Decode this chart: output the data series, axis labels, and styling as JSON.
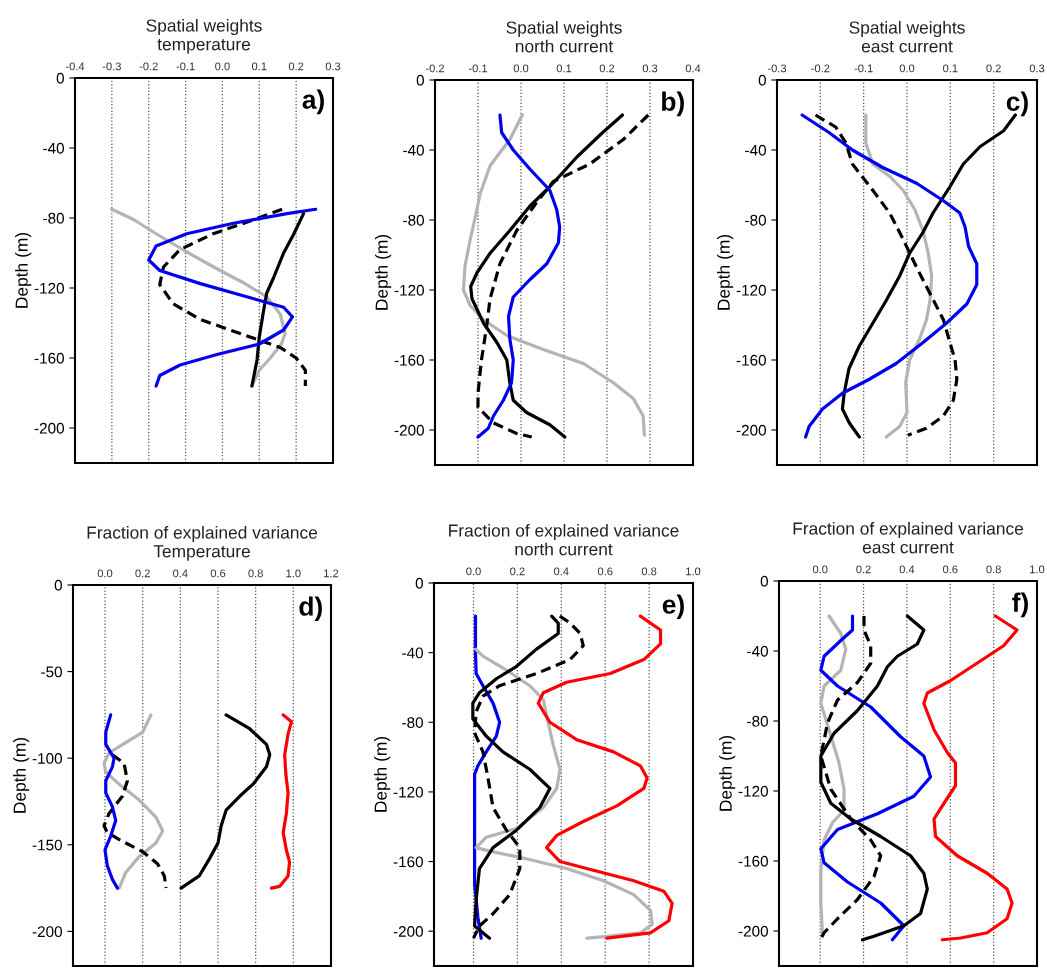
{
  "chart_data": [
    {
      "type": "line",
      "title": "Spatial weights\ntemperature",
      "ylabel": "Depth (m)",
      "annotations": [
        "a)"
      ],
      "xlim": [
        -0.4,
        0.3
      ],
      "xticks": [
        {
          "value": -0.4,
          "label": "-0.4"
        },
        {
          "value": -0.3,
          "label": "-0.3"
        },
        {
          "value": -0.2,
          "label": "-0.2"
        },
        {
          "value": -0.1,
          "label": "-0.1"
        },
        {
          "value": 0.0,
          "label": "0.0"
        },
        {
          "value": 0.1,
          "label": "0.1"
        },
        {
          "value": 0.2,
          "label": "0.2"
        },
        {
          "value": 0.3,
          "label": "0.3"
        }
      ],
      "ylim": [
        -220,
        0
      ],
      "yticks": [
        0,
        -40,
        -80,
        -120,
        -160,
        -200
      ],
      "grid": "x",
      "series": [
        {
          "color": "#b4b4b4",
          "line_style": "solid",
          "x": [
            -0.3,
            -0.24,
            -0.18,
            -0.1,
            -0.015,
            0.057,
            0.12,
            0.157,
            0.17,
            0.16,
            0.13,
            0.1,
            0.08
          ],
          "values": [
            -75,
            -81,
            -89,
            -99,
            -109,
            -117,
            -125,
            -135,
            -146,
            -152,
            -160,
            -167,
            -176
          ]
        },
        {
          "color": "#000000",
          "line_style": "solid",
          "x": [
            0.22,
            0.194,
            0.166,
            0.139,
            0.12,
            0.11,
            0.1,
            0.094,
            0.08
          ],
          "values": [
            -77.5,
            -89,
            -100,
            -114,
            -123,
            -135,
            -148,
            -161,
            -176
          ]
        },
        {
          "color": "#000000",
          "line_style": "dashed",
          "x": [
            0.162,
            0.085,
            -0.025,
            -0.115,
            -0.16,
            -0.17,
            -0.134,
            -0.06,
            0.048,
            0.157,
            0.2,
            0.225,
            0.225
          ],
          "values": [
            -75,
            -81,
            -89,
            -98,
            -108,
            -118,
            -129,
            -138,
            -146,
            -154,
            -160,
            -167,
            -176
          ]
        },
        {
          "color": "#0000ee",
          "line_style": "solid",
          "x": [
            0.253,
            0.175,
            0.03,
            -0.097,
            -0.18,
            -0.2,
            -0.17,
            -0.06,
            0.066,
            0.166,
            0.19,
            0.166,
            0.1,
            -0.015,
            -0.115,
            -0.17,
            -0.18
          ],
          "values": [
            -75,
            -77.5,
            -83,
            -89,
            -96,
            -104,
            -110,
            -117.5,
            -125,
            -131,
            -136.5,
            -144,
            -152,
            -158,
            -164,
            -170,
            -176
          ]
        }
      ]
    },
    {
      "type": "line",
      "title": "Spatial weights\nnorth current",
      "ylabel": "Depth (m)",
      "annotations": [
        "b)"
      ],
      "xlim": [
        -0.2,
        0.4
      ],
      "xticks": [
        {
          "value": -0.2,
          "label": "-0.2"
        },
        {
          "value": -0.1,
          "label": "-0.1"
        },
        {
          "value": 0.0,
          "label": "0.0"
        },
        {
          "value": 0.1,
          "label": "0.1"
        },
        {
          "value": 0.2,
          "label": "0.2"
        },
        {
          "value": 0.3,
          "label": "0.3"
        },
        {
          "value": 0.4,
          "label": "0.4"
        }
      ],
      "ylim": [
        -220,
        0
      ],
      "yticks": [
        0,
        -40,
        -80,
        -120,
        -160,
        -200
      ],
      "grid": "x",
      "series": [
        {
          "color": "#b4b4b4",
          "line_style": "solid",
          "x": [
            0.003,
            -0.026,
            -0.072,
            -0.095,
            -0.106,
            -0.118,
            -0.13,
            -0.134,
            -0.118,
            -0.087,
            -0.033,
            0.052,
            0.145,
            0.215,
            0.261,
            0.284,
            0.287
          ],
          "values": [
            -20,
            -34,
            -49,
            -65,
            -78,
            -91,
            -106,
            -120,
            -129,
            -137,
            -146,
            -154,
            -162,
            -173,
            -182,
            -192,
            -203
          ]
        },
        {
          "color": "#000000",
          "line_style": "solid",
          "x": [
            0.236,
            0.19,
            0.13,
            0.067,
            0.021,
            -0.026,
            -0.072,
            -0.102,
            -0.117,
            -0.114,
            -0.087,
            -0.056,
            -0.033,
            -0.026,
            -0.018,
            0.013,
            0.067,
            0.102
          ],
          "values": [
            -20,
            -30,
            -44,
            -61,
            -72,
            -86,
            -99,
            -110,
            -118,
            -125,
            -139,
            -150,
            -160,
            -173,
            -183,
            -190,
            -197,
            -204
          ]
        },
        {
          "color": "#000000",
          "line_style": "dashed",
          "x": [
            0.296,
            0.238,
            0.16,
            0.075,
            0.036,
            -0.01,
            -0.049,
            -0.072,
            -0.08,
            -0.092,
            -0.1,
            -0.1,
            -0.064,
            -0.01,
            0.025
          ],
          "values": [
            -20,
            -34,
            -48,
            -58,
            -70,
            -86,
            -105,
            -125,
            -141,
            -160,
            -179,
            -187,
            -196,
            -202,
            -204
          ]
        },
        {
          "color": "#0000ee",
          "line_style": "solid",
          "x": [
            -0.049,
            -0.045,
            -0.018,
            0.021,
            0.067,
            0.083,
            0.09,
            0.087,
            0.06,
            0.021,
            -0.018,
            -0.029,
            -0.026,
            -0.018,
            -0.022,
            -0.041,
            -0.064,
            -0.076,
            -0.1
          ],
          "values": [
            -20,
            -30,
            -40,
            -51,
            -63,
            -74,
            -84,
            -93,
            -105,
            -114,
            -124,
            -135,
            -148,
            -160,
            -173,
            -183,
            -192,
            -199,
            -204
          ]
        }
      ]
    },
    {
      "type": "line",
      "title": "Spatial weights\neast current",
      "ylabel": "Depth (m)",
      "annotations": [
        "c)"
      ],
      "xlim": [
        -0.3,
        0.3
      ],
      "xticks": [
        {
          "value": -0.3,
          "label": "-0.3"
        },
        {
          "value": -0.2,
          "label": "-0.2"
        },
        {
          "value": -0.1,
          "label": "-0.1"
        },
        {
          "value": 0.0,
          "label": "0.0"
        },
        {
          "value": 0.1,
          "label": "0.1"
        },
        {
          "value": 0.2,
          "label": "0.2"
        },
        {
          "value": 0.3,
          "label": "0.3"
        }
      ],
      "ylim": [
        -220,
        0
      ],
      "yticks": [
        0,
        -40,
        -80,
        -120,
        -160,
        -200
      ],
      "grid": "x",
      "series": [
        {
          "color": "#b4b4b4",
          "line_style": "solid",
          "x": [
            -0.095,
            -0.095,
            -0.079,
            -0.04,
            -0.009,
            0.018,
            0.037,
            0.049,
            0.057,
            0.053,
            0.045,
            0.029,
            0.006,
            -0.003,
            0.0,
            -0.017,
            -0.048
          ],
          "values": [
            -20,
            -36,
            -48,
            -55,
            -63,
            -74,
            -86,
            -99,
            -112,
            -126,
            -137,
            -148,
            -160,
            -173,
            -190,
            -198,
            -204
          ]
        },
        {
          "color": "#000000",
          "line_style": "solid",
          "x": [
            0.25,
            0.223,
            0.169,
            0.13,
            0.099,
            0.06,
            0.037,
            0.006,
            -0.017,
            -0.048,
            -0.079,
            -0.11,
            -0.134,
            -0.145,
            -0.149,
            -0.133,
            -0.11
          ],
          "values": [
            -20,
            -29,
            -38,
            -48,
            -61,
            -76,
            -87,
            -99,
            -112,
            -126,
            -139,
            -152,
            -165,
            -179,
            -188,
            -196,
            -204
          ]
        },
        {
          "color": "#000000",
          "line_style": "dashed",
          "x": [
            -0.211,
            -0.164,
            -0.141,
            -0.126,
            -0.079,
            -0.04,
            -0.009,
            0.022,
            0.053,
            0.084,
            0.099,
            0.111,
            0.115,
            0.107,
            0.084,
            0.045,
            0.002
          ],
          "values": [
            -20,
            -27,
            -36,
            -48,
            -63,
            -76,
            -91,
            -107,
            -122,
            -137,
            -150,
            -160,
            -171,
            -183,
            -192,
            -199,
            -203
          ]
        },
        {
          "color": "#0000ee",
          "line_style": "solid",
          "x": [
            -0.242,
            -0.18,
            -0.126,
            -0.056,
            0.022,
            0.084,
            0.122,
            0.134,
            0.142,
            0.161,
            0.161,
            0.138,
            0.091,
            0.037,
            -0.025,
            -0.087,
            -0.149,
            -0.195,
            -0.226,
            -0.234
          ],
          "values": [
            -20,
            -30,
            -40,
            -50,
            -59,
            -69,
            -76,
            -84,
            -95,
            -105,
            -117,
            -128,
            -139,
            -150,
            -162,
            -171,
            -179,
            -188,
            -198,
            -204
          ]
        }
      ]
    },
    {
      "type": "line",
      "title": "Fraction of explained variance\nTemperature",
      "ylabel": "Depth (m)",
      "annotations": [
        "d)"
      ],
      "xlim": [
        -0.17,
        1.2
      ],
      "xticks": [
        {
          "value": 0.0,
          "label": "0.0"
        },
        {
          "value": 0.2,
          "label": "0.2"
        },
        {
          "value": 0.4,
          "label": "0.4"
        },
        {
          "value": 0.6,
          "label": "0.6"
        },
        {
          "value": 0.8,
          "label": "0.8"
        },
        {
          "value": 1.0,
          "label": "1.0"
        },
        {
          "value": 1.2,
          "label": "1.2"
        }
      ],
      "ylim": [
        -220,
        0
      ],
      "yticks": [
        0,
        -50,
        -100,
        -150,
        -200
      ],
      "grid": "x",
      "series": [
        {
          "color": "#b4b4b4",
          "line_style": "solid",
          "x": [
            0.244,
            0.2,
            0.11,
            0.021,
            -0.005,
            0.004,
            0.075,
            0.18,
            0.27,
            0.306,
            0.27,
            0.18,
            0.11,
            0.075
          ],
          "values": [
            -75,
            -85,
            -91,
            -97,
            -103,
            -108,
            -115,
            -124,
            -134,
            -142,
            -149,
            -157,
            -166,
            -175
          ]
        },
        {
          "color": "#000000",
          "line_style": "solid",
          "x": [
            0.643,
            0.768,
            0.857,
            0.875,
            0.857,
            0.786,
            0.715,
            0.643,
            0.617,
            0.6,
            0.555,
            0.5,
            0.404
          ],
          "values": [
            -75,
            -83,
            -92,
            -98,
            -105,
            -115,
            -122,
            -130,
            -139,
            -149,
            -158,
            -168,
            -175
          ]
        },
        {
          "color": "#000000",
          "line_style": "dashed",
          "x": [
            0.039,
            0.101,
            0.119,
            0.092,
            0.021,
            -0.005,
            0.012,
            0.092,
            0.2,
            0.279,
            0.315,
            0.324
          ],
          "values": [
            -98,
            -103,
            -113,
            -122,
            -132,
            -139,
            -143,
            -148,
            -154,
            -161,
            -168,
            -175
          ]
        },
        {
          "color": "#0000ee",
          "line_style": "solid",
          "x": [
            0.03,
            0.004,
            0.004,
            0.048,
            0.039,
            0.004,
            0.004,
            0.039,
            0.057,
            0.03,
            0.0,
            0.012,
            0.039,
            0.066
          ],
          "values": [
            -75,
            -85,
            -92,
            -100,
            -105,
            -113,
            -120,
            -128,
            -136,
            -145,
            -153,
            -162,
            -170,
            -175
          ]
        },
        {
          "color": "#ff0000",
          "line_style": "solid",
          "x": [
            0.946,
            0.99,
            0.972,
            0.954,
            0.96,
            0.972,
            0.963,
            0.946,
            0.963,
            0.98,
            0.972,
            0.928,
            0.884
          ],
          "values": [
            -75,
            -79,
            -86,
            -98,
            -109,
            -120,
            -132,
            -143,
            -153,
            -160,
            -168,
            -174,
            -175
          ]
        }
      ]
    },
    {
      "type": "line",
      "title": "Fraction of explained variance\nnorth current",
      "ylabel": "Depth (m)",
      "annotations": [
        "e)"
      ],
      "xlim": [
        -0.18,
        1.0
      ],
      "xticks": [
        {
          "value": 0.0,
          "label": "0.0"
        },
        {
          "value": 0.2,
          "label": "0.2"
        },
        {
          "value": 0.4,
          "label": "0.4"
        },
        {
          "value": 0.6,
          "label": "0.6"
        },
        {
          "value": 0.8,
          "label": "0.8"
        },
        {
          "value": 1.0,
          "label": "1.0"
        }
      ],
      "ylim": [
        -220,
        0
      ],
      "yticks": [
        0,
        -40,
        -80,
        -120,
        -160,
        -200
      ],
      "grid": "x",
      "series": [
        {
          "color": "#0000ee",
          "line_style": "solid",
          "x": [
            0.009,
            0.009,
            0.012,
            0.043,
            0.089,
            0.119,
            0.104,
            0.058,
            0.02,
            0.005,
            0.005,
            0.005,
            0.02,
            0.035
          ],
          "values": [
            -19,
            -40,
            -52,
            -59,
            -69,
            -80,
            -88,
            -97,
            -105,
            -110,
            -145,
            -173,
            -192,
            -204
          ]
        },
        {
          "color": "#b4b4b4",
          "line_style": "solid",
          "x": [
            0.009,
            0.043,
            0.15,
            0.256,
            0.318,
            0.34,
            0.363,
            0.394,
            0.379,
            0.318,
            0.196,
            0.058,
            0.012,
            0.073,
            0.226,
            0.424,
            0.592,
            0.73,
            0.806,
            0.814,
            0.76,
            0.608,
            0.516
          ],
          "values": [
            -38,
            -42,
            -50,
            -59,
            -67,
            -80,
            -93,
            -107,
            -118,
            -129,
            -141,
            -146,
            -152,
            -154,
            -158,
            -164,
            -171,
            -179,
            -188,
            -196,
            -201,
            -203,
            -204
          ]
        },
        {
          "color": "#000000",
          "line_style": "solid",
          "x": [
            0.356,
            0.386,
            0.386,
            0.287,
            0.195,
            0.104,
            0.027,
            -0.003,
            -0.003,
            0.058,
            0.134,
            0.256,
            0.348,
            0.302,
            0.196,
            0.089,
            0.027,
            0.012,
            0.005,
            0.073
          ],
          "values": [
            -19,
            -23,
            -29,
            -38,
            -48,
            -55,
            -63,
            -69,
            -78,
            -88,
            -97,
            -107,
            -118,
            -129,
            -142,
            -152,
            -164,
            -182,
            -197,
            -204
          ]
        },
        {
          "color": "#000000",
          "line_style": "dashed",
          "x": [
            0.393,
            0.44,
            0.486,
            0.5,
            0.44,
            0.287,
            0.119,
            0.043,
            0.012,
            0.005,
            0.043,
            0.066,
            0.089,
            0.15,
            0.211,
            0.211,
            0.165,
            0.089,
            0.027,
            0.0
          ],
          "values": [
            -19,
            -23,
            -29,
            -36,
            -44,
            -52,
            -59,
            -65,
            -74,
            -86,
            -97,
            -112,
            -129,
            -142,
            -152,
            -164,
            -179,
            -190,
            -197,
            -204
          ]
        },
        {
          "color": "#ff0000",
          "line_style": "solid",
          "x": [
            0.76,
            0.852,
            0.852,
            0.776,
            0.623,
            0.424,
            0.318,
            0.295,
            0.348,
            0.47,
            0.638,
            0.76,
            0.791,
            0.776,
            0.653,
            0.5,
            0.379,
            0.333,
            0.394,
            0.546,
            0.73,
            0.867,
            0.905,
            0.89,
            0.806,
            0.608
          ],
          "values": [
            -19,
            -27,
            -35,
            -44,
            -52,
            -57,
            -63,
            -69,
            -80,
            -90,
            -97,
            -105,
            -112,
            -118,
            -128,
            -137,
            -145,
            -152,
            -160,
            -165,
            -171,
            -177,
            -184,
            -194,
            -201,
            -204
          ]
        }
      ]
    },
    {
      "type": "line",
      "title": "Fraction of explained variance\neast current",
      "ylabel": "Depth (m)",
      "annotations": [
        "f)"
      ],
      "xlim": [
        -0.19,
        1.0
      ],
      "xticks": [
        {
          "value": 0.0,
          "label": "0.0"
        },
        {
          "value": 0.2,
          "label": "0.2"
        },
        {
          "value": 0.4,
          "label": "0.4"
        },
        {
          "value": 0.6,
          "label": "0.6"
        },
        {
          "value": 0.8,
          "label": "0.8"
        },
        {
          "value": 1.0,
          "label": "1.0"
        }
      ],
      "ylim": [
        -220,
        0
      ],
      "yticks": [
        0,
        -40,
        -80,
        -120,
        -160,
        -200
      ],
      "grid": "x",
      "series": [
        {
          "color": "#b4b4b4",
          "line_style": "solid",
          "x": [
            0.041,
            0.095,
            0.118,
            0.095,
            0.018,
            0.003,
            0.041,
            0.087,
            0.11,
            0.11,
            0.057,
            0.018,
            0.003,
            0.003,
            0.011
          ],
          "values": [
            -20,
            -30,
            -39,
            -51,
            -60,
            -70,
            -85,
            -104,
            -119,
            -131,
            -138,
            -148,
            -165,
            -184,
            -203
          ]
        },
        {
          "color": "#0000ee",
          "line_style": "solid",
          "x": [
            0.149,
            0.149,
            0.095,
            0.018,
            0.003,
            0.08,
            0.233,
            0.371,
            0.478,
            0.509,
            0.432,
            0.264,
            0.08,
            0.003,
            0.018,
            0.126,
            0.279,
            0.386,
            0.333
          ],
          "values": [
            -20,
            -28,
            -34,
            -43,
            -51,
            -60,
            -72,
            -89,
            -100,
            -112,
            -123,
            -133,
            -142,
            -153,
            -161,
            -172,
            -184,
            -197,
            -205
          ]
        },
        {
          "color": "#000000",
          "line_style": "solid",
          "x": [
            0.402,
            0.478,
            0.448,
            0.356,
            0.31,
            0.264,
            0.172,
            0.064,
            0.003,
            0.003,
            0.049,
            0.141,
            0.279,
            0.417,
            0.478,
            0.494,
            0.463,
            0.386,
            0.248,
            0.195
          ],
          "values": [
            -20,
            -28,
            -36,
            -43,
            -49,
            -60,
            -74,
            -87,
            -100,
            -115,
            -127,
            -136,
            -146,
            -157,
            -167,
            -176,
            -190,
            -197,
            -203,
            -205
          ]
        },
        {
          "color": "#000000",
          "line_style": "dashed",
          "x": [
            0.202,
            0.202,
            0.233,
            0.233,
            0.172,
            0.08,
            0.034,
            0.003,
            0.049,
            0.141,
            0.233,
            0.279,
            0.248,
            0.172,
            0.08,
            0.018,
            0.0
          ],
          "values": [
            -20,
            -28,
            -37,
            -47,
            -58,
            -68,
            -81,
            -100,
            -119,
            -136,
            -148,
            -157,
            -169,
            -182,
            -193,
            -201,
            -205
          ]
        },
        {
          "color": "#ff0000",
          "line_style": "solid",
          "x": [
            0.808,
            0.908,
            0.846,
            0.723,
            0.6,
            0.494,
            0.478,
            0.525,
            0.586,
            0.624,
            0.624,
            0.571,
            0.525,
            0.532,
            0.632,
            0.77,
            0.862,
            0.885,
            0.862,
            0.77,
            0.648,
            0.563
          ],
          "values": [
            -20,
            -28,
            -37,
            -47,
            -57,
            -64,
            -70,
            -85,
            -98,
            -104,
            -117,
            -127,
            -136,
            -146,
            -157,
            -167,
            -176,
            -184,
            -193,
            -201,
            -204,
            -205
          ]
        }
      ]
    }
  ]
}
